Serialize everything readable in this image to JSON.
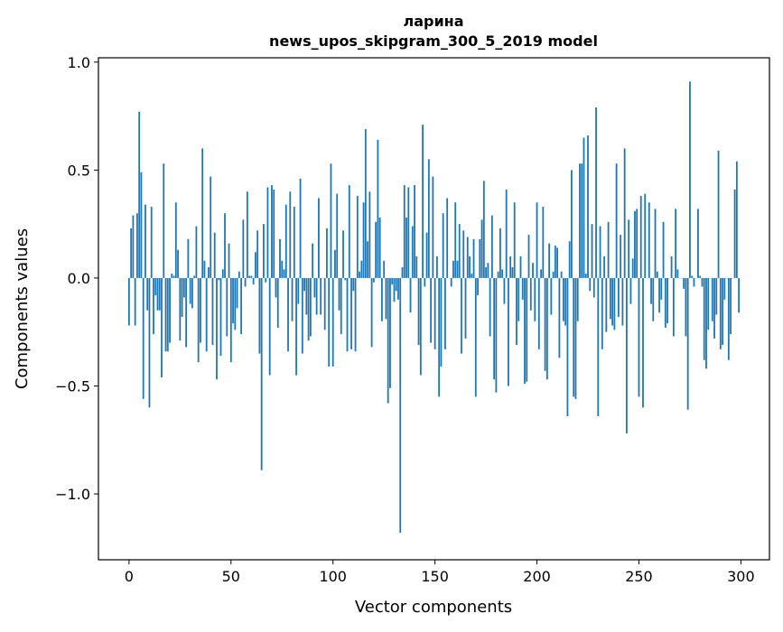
{
  "chart_data": {
    "type": "bar",
    "title": "ларина",
    "subtitle": "news_upos_skipgram_300_5_2019 model",
    "xlabel": "Vector components",
    "ylabel": "Components values",
    "xlim": [
      -15,
      314
    ],
    "ylim": [
      -1.305,
      1.02
    ],
    "xticks": [
      0,
      50,
      100,
      150,
      200,
      250,
      300
    ],
    "xtick_labels": [
      "0",
      "50",
      "100",
      "150",
      "200",
      "250",
      "300"
    ],
    "yticks": [
      1.0,
      0.5,
      0.0,
      -0.5,
      -1.0
    ],
    "ytick_labels": [
      "1.0",
      "0.5",
      "0.0",
      "−0.5",
      "−1.0"
    ],
    "grid": false,
    "bar_color": "#1f77b4",
    "values": [
      -0.22,
      0.23,
      0.29,
      -0.22,
      0.3,
      0.77,
      0.49,
      -0.56,
      0.34,
      -0.15,
      -0.6,
      0.33,
      -0.26,
      -0.08,
      -0.15,
      -0.15,
      -0.46,
      0.53,
      -0.34,
      -0.34,
      -0.3,
      0.02,
      0.01,
      0.35,
      0.13,
      -0.29,
      -0.18,
      -0.09,
      -0.32,
      0.18,
      -0.12,
      -0.14,
      0.01,
      0.24,
      -0.39,
      -0.3,
      0.6,
      0.08,
      -0.34,
      0.05,
      0.47,
      -0.31,
      0.21,
      -0.47,
      -0.01,
      -0.36,
      0.04,
      0.3,
      -0.27,
      0.16,
      -0.39,
      -0.21,
      -0.24,
      -0.14,
      0.03,
      -0.26,
      0.27,
      -0.04,
      0.4,
      0.01,
      0.01,
      -0.03,
      0.12,
      0.22,
      -0.35,
      -0.89,
      0.25,
      -0.02,
      0.42,
      -0.45,
      0.43,
      0.41,
      -0.09,
      -0.23,
      0.18,
      0.08,
      0.04,
      0.34,
      -0.34,
      0.4,
      -0.2,
      0.33,
      -0.45,
      -0.12,
      0.46,
      -0.35,
      -0.06,
      -0.17,
      -0.29,
      -0.27,
      0.16,
      -0.09,
      -0.17,
      0.37,
      -0.17,
      0.0,
      -0.24,
      0.23,
      -0.41,
      0.53,
      -0.41,
      0.13,
      0.39,
      -0.15,
      -0.26,
      0.22,
      -0.01,
      -0.34,
      0.43,
      -0.33,
      -0.06,
      -0.34,
      0.38,
      0.03,
      0.08,
      0.35,
      0.69,
      0.17,
      0.4,
      -0.32,
      -0.02,
      0.26,
      0.64,
      0.28,
      -0.2,
      0.08,
      -0.19,
      -0.58,
      -0.51,
      -0.03,
      -0.11,
      -0.06,
      -0.1,
      -1.18,
      0.05,
      0.43,
      0.28,
      0.42,
      -0.16,
      0.24,
      0.43,
      0.1,
      -0.31,
      -0.45,
      0.71,
      -0.04,
      0.21,
      0.55,
      -0.3,
      0.47,
      -0.33,
      0.1,
      -0.55,
      -0.41,
      0.3,
      -0.33,
      0.37,
      0.0,
      -0.04,
      0.08,
      0.35,
      0.08,
      0.25,
      -0.35,
      0.22,
      -0.28,
      0.19,
      0.1,
      0.02,
      0.18,
      -0.55,
      -0.08,
      0.18,
      0.27,
      0.45,
      0.05,
      0.07,
      -0.27,
      0.29,
      -0.47,
      -0.53,
      0.03,
      0.23,
      0.04,
      -0.12,
      0.41,
      -0.5,
      0.1,
      0.05,
      0.35,
      -0.31,
      -0.2,
      0.1,
      -0.1,
      -0.49,
      -0.48,
      0.2,
      -0.15,
      0.07,
      -0.2,
      0.35,
      -0.33,
      0.04,
      0.33,
      -0.43,
      -0.47,
      0.16,
      -0.17,
      0.03,
      0.15,
      0.14,
      -0.37,
      0.03,
      -0.2,
      -0.22,
      -0.64,
      0.17,
      0.5,
      -0.55,
      -0.56,
      -0.2,
      0.53,
      0.53,
      0.65,
      0.02,
      0.66,
      -0.06,
      0.25,
      -0.09,
      0.79,
      -0.64,
      0.24,
      -0.33,
      0.1,
      -0.25,
      0.26,
      -0.19,
      -0.22,
      -0.24,
      0.53,
      -0.18,
      0.2,
      -0.22,
      0.6,
      -0.72,
      0.27,
      -0.12,
      0.09,
      0.31,
      0.32,
      -0.55,
      0.38,
      -0.6,
      0.39,
      0.0,
      0.35,
      -0.12,
      -0.2,
      0.32,
      0.03,
      -0.16,
      -0.1,
      0.26,
      -0.23,
      -0.21,
      0.0,
      0.1,
      -0.27,
      0.32,
      0.04,
      0.0,
      0.0,
      -0.05,
      -0.27,
      -0.61,
      0.91,
      0.01,
      -0.04,
      0.0,
      0.32,
      0.01,
      -0.04,
      -0.38,
      -0.42,
      -0.24,
      0.0,
      -0.2,
      -0.28,
      -0.17,
      0.59,
      -0.33,
      -0.31,
      -0.1,
      0.0,
      -0.38,
      -0.26,
      0.0,
      0.41,
      0.54,
      -0.16
    ]
  }
}
